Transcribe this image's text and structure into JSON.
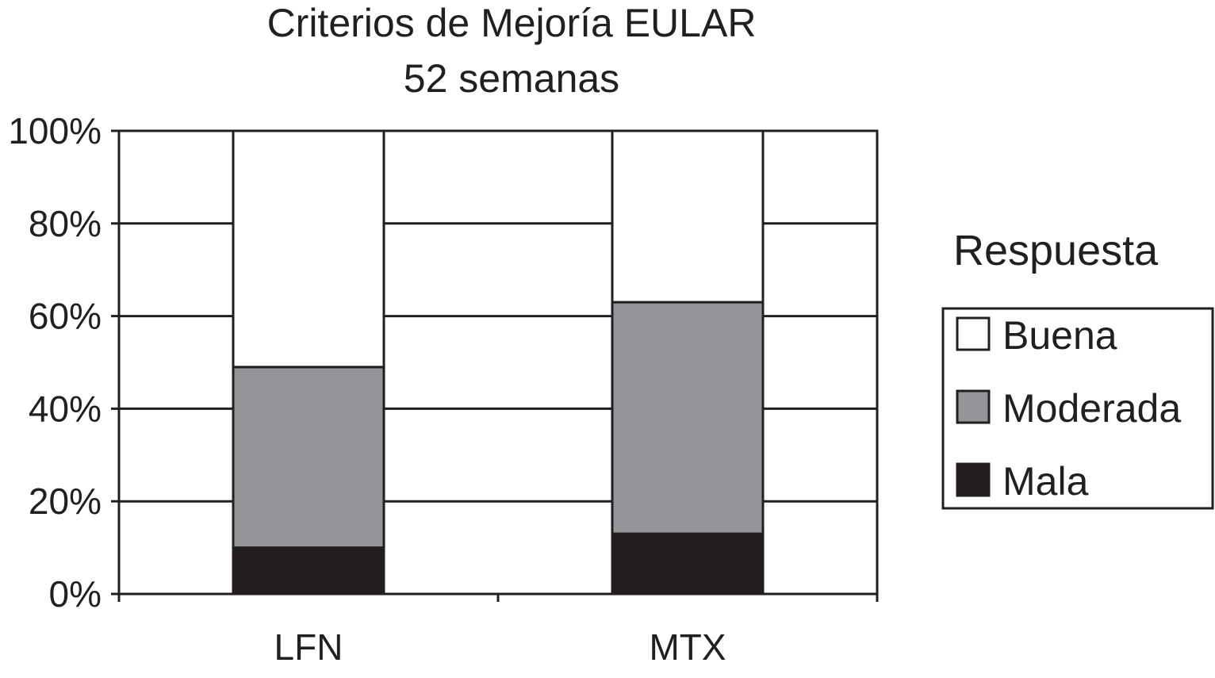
{
  "chart_data": {
    "type": "bar",
    "stacked": true,
    "title": [
      "Criterios de Mejoría EULAR",
      "52 semanas"
    ],
    "categories": [
      "LFN",
      "MTX"
    ],
    "series": [
      {
        "name": "Mala",
        "values": [
          10,
          13
        ],
        "color": "#231f20"
      },
      {
        "name": "Moderada",
        "values": [
          39,
          50
        ],
        "color": "#939598"
      },
      {
        "name": "Buena",
        "values": [
          51,
          37
        ],
        "color": "#ffffff"
      }
    ],
    "ylim": [
      0,
      100
    ],
    "yticks": [
      0,
      20,
      40,
      60,
      80,
      100
    ],
    "ytick_labels": [
      "0%",
      "20%",
      "40%",
      "60%",
      "80%",
      "100%"
    ],
    "xlabel": "",
    "ylabel": "",
    "grid": true,
    "legend": {
      "title": "Respuesta",
      "order": [
        "Buena",
        "Moderada",
        "Mala"
      ],
      "placement": "right"
    }
  }
}
